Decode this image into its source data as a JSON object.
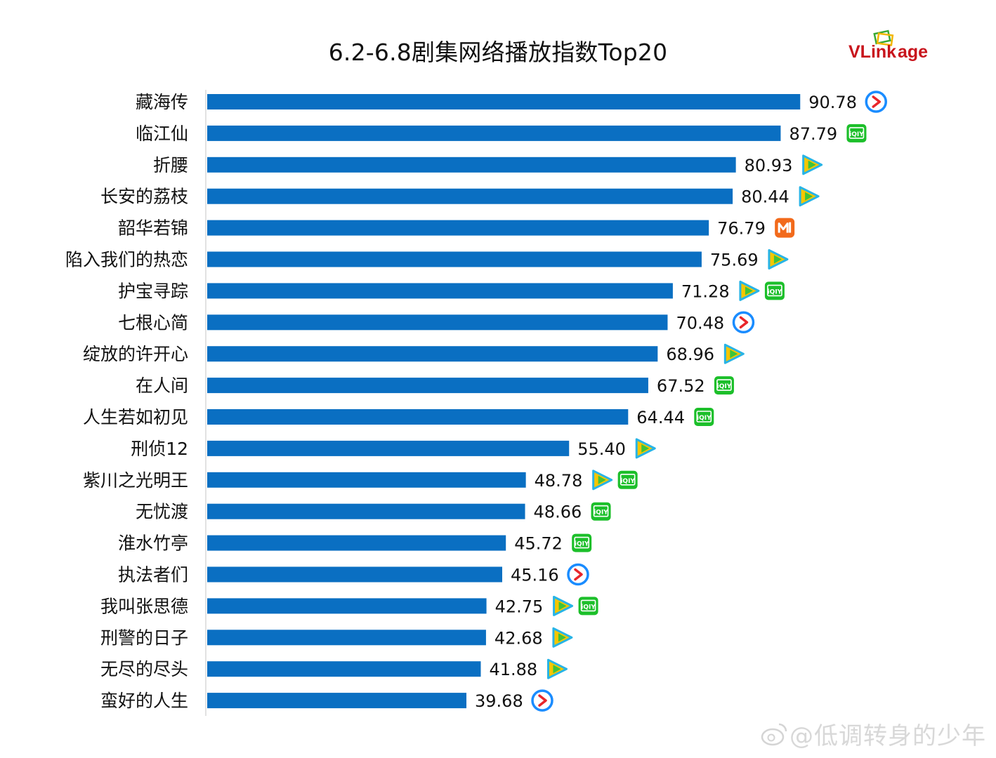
{
  "title": "6.2-6.8剧集网络播放指数Top20",
  "logo": {
    "text_v": "VLink",
    "text_age": "age",
    "color_red": "#c8141c",
    "color_green": "#3aa935"
  },
  "watermark": "@低调转身的少年",
  "colors": {
    "bar": "#0a6fc2",
    "youku": "#1a8cff",
    "iqiyi": "#1cbf2a",
    "tencent": "#f5c600",
    "mgtv": "#f26a1b"
  },
  "chart_data": {
    "type": "bar",
    "orientation": "horizontal",
    "title": "6.2-6.8剧集网络播放指数Top20",
    "xlim": [
      0,
      100
    ],
    "categories": [
      "藏海传",
      "临江仙",
      "折腰",
      "长安的荔枝",
      "韶华若锦",
      "陷入我们的热恋",
      "护宝寻踪",
      "七根心简",
      "绽放的许开心",
      "在人间",
      "人生若如初见",
      "刑侦12",
      "紫川之光明王",
      "无忧渡",
      "淮水竹亭",
      "执法者们",
      "我叫张思德",
      "刑警的日子",
      "无尽的尽头",
      "蛮好的人生"
    ],
    "values": [
      90.78,
      87.79,
      80.93,
      80.44,
      76.79,
      75.69,
      71.28,
      70.48,
      68.96,
      67.52,
      64.44,
      55.4,
      48.78,
      48.66,
      45.72,
      45.16,
      42.75,
      42.68,
      41.88,
      39.68
    ],
    "value_labels": [
      "90.78",
      "87.79",
      "80.93",
      "80.44",
      "76.79",
      "75.69",
      "71.28",
      "70.48",
      "68.96",
      "67.52",
      "64.44",
      "55.40",
      "48.78",
      "48.66",
      "45.72",
      "45.16",
      "42.75",
      "42.68",
      "41.88",
      "39.68"
    ],
    "platforms": [
      [
        "youku"
      ],
      [
        "iqiyi"
      ],
      [
        "tencent"
      ],
      [
        "tencent"
      ],
      [
        "mgtv"
      ],
      [
        "tencent"
      ],
      [
        "tencent",
        "iqiyi"
      ],
      [
        "youku"
      ],
      [
        "tencent"
      ],
      [
        "iqiyi"
      ],
      [
        "iqiyi"
      ],
      [
        "tencent"
      ],
      [
        "tencent",
        "iqiyi"
      ],
      [
        "iqiyi"
      ],
      [
        "iqiyi"
      ],
      [
        "youku"
      ],
      [
        "tencent",
        "iqiyi"
      ],
      [
        "tencent"
      ],
      [
        "tencent"
      ],
      [
        "youku"
      ]
    ],
    "grid": false,
    "legend": "none"
  }
}
